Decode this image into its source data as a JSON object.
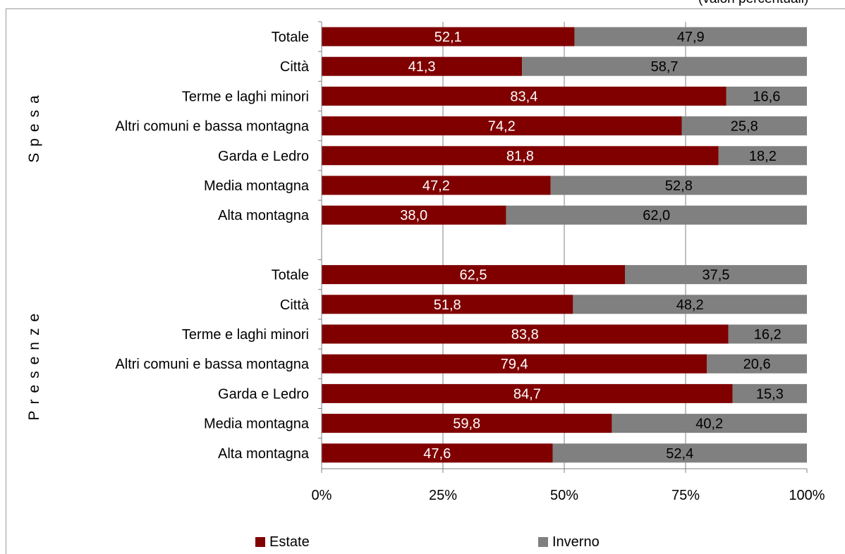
{
  "colors": {
    "estate": "#800000",
    "inverno": "#808080",
    "grid": "#808080",
    "axis": "#808080"
  },
  "chart_data": {
    "type": "bar",
    "orientation": "horizontal",
    "stacked": "percent",
    "title": "",
    "header_fragment": "(valori percentuali)",
    "xlim": [
      0,
      100
    ],
    "x_ticks": [
      "0%",
      "25%",
      "50%",
      "75%",
      "100%"
    ],
    "grid": "vertical",
    "legend_position": "bottom",
    "series": [
      {
        "name": "Estate",
        "color": "#800000"
      },
      {
        "name": "Inverno",
        "color": "#808080"
      }
    ],
    "groups": [
      {
        "label": "Spesa",
        "categories": [
          "Totale",
          "Città",
          "Terme  e laghi minori",
          "Altri comuni e bassa montagna",
          "Garda e Ledro",
          "Media montagna",
          "Alta montagna"
        ],
        "estate": [
          "52,1",
          "41,3",
          "83,4",
          "74,2",
          "81,8",
          "47,2",
          "38,0"
        ],
        "inverno": [
          "47,9",
          "58,7",
          "16,6",
          "25,8",
          "18,2",
          "52,8",
          "62,0"
        ]
      },
      {
        "label": "Presenze",
        "categories": [
          "Totale",
          "Città",
          "Terme  e laghi minori",
          "Altri comuni e bassa montagna",
          "Garda e Ledro",
          "Media montagna",
          "Alta montagna"
        ],
        "estate": [
          "62,5",
          "51,8",
          "83,8",
          "79,4",
          "84,7",
          "59,8",
          "47,6"
        ],
        "inverno": [
          "37,5",
          "48,2",
          "16,2",
          "20,6",
          "15,3",
          "40,2",
          "52,4"
        ]
      }
    ]
  }
}
